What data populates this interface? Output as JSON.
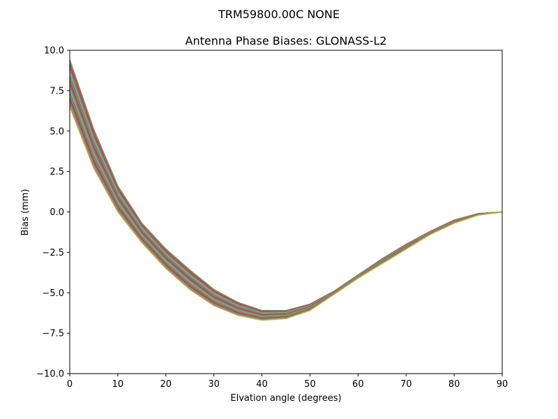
{
  "chart_data": {
    "type": "line",
    "suptitle": "TRM59800.00C    NONE",
    "title": "Antenna Phase Biases: GLONASS-L2",
    "xlabel": "Elvation angle (degrees)",
    "ylabel": "Bias (mm)",
    "xlim": [
      0,
      90
    ],
    "ylim": [
      -10,
      10
    ],
    "xticks": [
      "0",
      "10",
      "20",
      "30",
      "40",
      "50",
      "60",
      "70",
      "80",
      "90"
    ],
    "yticks": [
      "10.0",
      "7.5",
      "5.0",
      "2.5",
      "0.0",
      "−2.5",
      "−5.0",
      "−7.5",
      "−10.0"
    ],
    "grid": false,
    "legend": "none",
    "x": [
      0,
      5,
      10,
      15,
      20,
      25,
      30,
      35,
      40,
      45,
      50,
      55,
      60,
      65,
      70,
      75,
      80,
      85,
      90
    ],
    "envelope": {
      "upper": [
        9.4,
        5.1,
        1.6,
        -0.7,
        -2.3,
        -3.6,
        -4.8,
        -5.6,
        -6.1,
        -6.1,
        -5.7,
        -4.9,
        -3.9,
        -2.9,
        -2.0,
        -1.2,
        -0.5,
        -0.1,
        0.0
      ],
      "lower": [
        6.5,
        2.7,
        0.0,
        -1.9,
        -3.5,
        -4.8,
        -5.8,
        -6.4,
        -6.7,
        -6.6,
        -6.1,
        -5.1,
        -4.1,
        -3.2,
        -2.3,
        -1.4,
        -0.7,
        -0.2,
        0.0
      ]
    },
    "series_count": 29,
    "colors": [
      "#1f77b4",
      "#ff7f0e",
      "#2ca02c",
      "#d62728",
      "#9467bd",
      "#8c564b",
      "#e377c2",
      "#7f7f7f",
      "#bcbd22",
      "#17becf"
    ]
  }
}
